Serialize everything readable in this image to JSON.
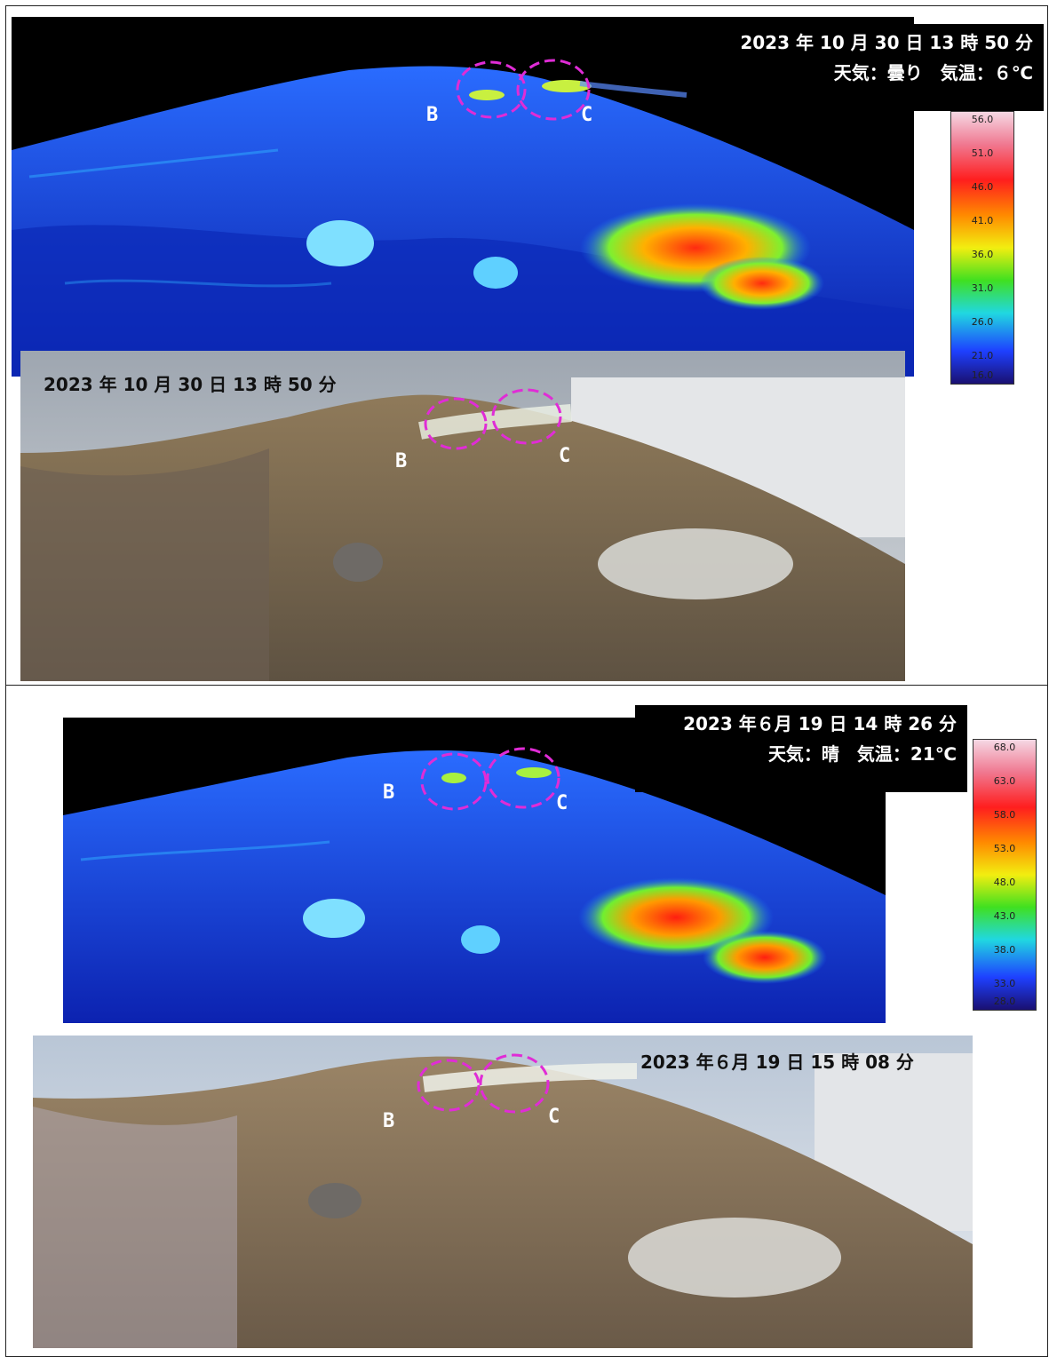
{
  "top": {
    "thermal_timestamp": "2023 年 10 月 30 日 13 時 50 分",
    "weather": "天気：曇り　気温：６℃",
    "photo_timestamp": "2023 年 10 月 30 日 13 時 50 分",
    "label_b": "B",
    "label_c": "C",
    "scale_values": [
      "56.0",
      "51.0",
      "46.0",
      "41.0",
      "36.0",
      "31.0",
      "26.0",
      "21.0",
      "16.0"
    ]
  },
  "bottom": {
    "thermal_timestamp": "2023 年６月 19 日 14 時 26 分",
    "weather": "天気：晴　気温：21℃",
    "photo_timestamp": "2023 年６月 19 日 15 時 08 分",
    "label_b": "B",
    "label_c": "C",
    "scale_values": [
      "68.0",
      "63.0",
      "58.0",
      "53.0",
      "48.0",
      "43.0",
      "38.0",
      "33.0",
      "28.0"
    ]
  },
  "colors": {
    "marker": "#e02cd6",
    "thermal_sky": "#000000",
    "thermal_base": "#1030d8"
  }
}
